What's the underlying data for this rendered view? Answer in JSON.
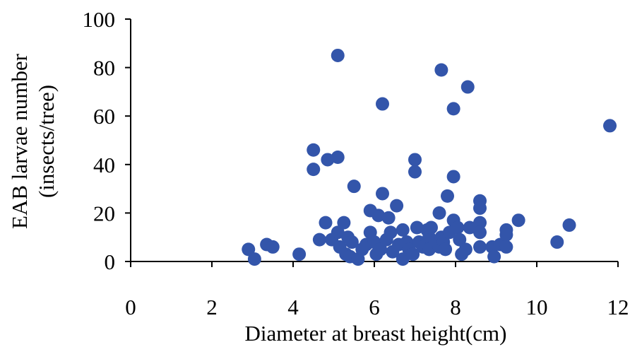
{
  "chart_data": {
    "type": "scatter",
    "title": "",
    "xlabel": "Diameter at breast height(cm)",
    "ylabel_line1": "EAB larvae number",
    "ylabel_line2": "(insects/tree)",
    "xlim": [
      0,
      12
    ],
    "ylim": [
      0,
      100
    ],
    "xticks": [
      0,
      2,
      4,
      6,
      8,
      10,
      12
    ],
    "yticks": [
      0,
      20,
      40,
      60,
      80,
      100
    ],
    "xtick_labels": [
      "0",
      "2",
      "4",
      "6",
      "8",
      "10",
      "12"
    ],
    "ytick_labels": [
      "0",
      "20",
      "40",
      "60",
      "80",
      "100"
    ],
    "grid": false,
    "legend": "none",
    "marker_color": "#3355aa",
    "points": [
      [
        2.9,
        5
      ],
      [
        3.05,
        1
      ],
      [
        3.35,
        7
      ],
      [
        3.5,
        6
      ],
      [
        4.15,
        3
      ],
      [
        4.5,
        46
      ],
      [
        4.5,
        38
      ],
      [
        4.85,
        42
      ],
      [
        5.1,
        43
      ],
      [
        5.1,
        85
      ],
      [
        4.65,
        9
      ],
      [
        4.8,
        16
      ],
      [
        4.95,
        9
      ],
      [
        5.1,
        12
      ],
      [
        5.15,
        6
      ],
      [
        5.25,
        16
      ],
      [
        5.3,
        3
      ],
      [
        5.35,
        10
      ],
      [
        5.45,
        8
      ],
      [
        5.5,
        31
      ],
      [
        5.4,
        2
      ],
      [
        5.6,
        1
      ],
      [
        5.7,
        5
      ],
      [
        5.8,
        7
      ],
      [
        5.9,
        12
      ],
      [
        5.9,
        21
      ],
      [
        6.0,
        8
      ],
      [
        6.05,
        3
      ],
      [
        6.1,
        19
      ],
      [
        6.15,
        5
      ],
      [
        6.2,
        28
      ],
      [
        6.2,
        65
      ],
      [
        6.3,
        9
      ],
      [
        6.35,
        18
      ],
      [
        6.4,
        12
      ],
      [
        6.45,
        4
      ],
      [
        6.55,
        23
      ],
      [
        6.6,
        7
      ],
      [
        6.7,
        1
      ],
      [
        6.7,
        13
      ],
      [
        6.8,
        8
      ],
      [
        6.85,
        5
      ],
      [
        6.95,
        3
      ],
      [
        7.0,
        42
      ],
      [
        7.0,
        37
      ],
      [
        7.05,
        14
      ],
      [
        7.1,
        8
      ],
      [
        7.2,
        6
      ],
      [
        7.3,
        13
      ],
      [
        7.35,
        10
      ],
      [
        7.35,
        5
      ],
      [
        7.4,
        14
      ],
      [
        7.5,
        8
      ],
      [
        7.6,
        6
      ],
      [
        7.6,
        20
      ],
      [
        7.65,
        79
      ],
      [
        7.65,
        10
      ],
      [
        7.7,
        8
      ],
      [
        7.75,
        5
      ],
      [
        7.8,
        27
      ],
      [
        7.85,
        12
      ],
      [
        7.95,
        63
      ],
      [
        7.95,
        35
      ],
      [
        7.95,
        17
      ],
      [
        8.05,
        14
      ],
      [
        8.1,
        9
      ],
      [
        8.15,
        3
      ],
      [
        8.25,
        5
      ],
      [
        8.3,
        72
      ],
      [
        8.35,
        14
      ],
      [
        8.6,
        25
      ],
      [
        8.6,
        22
      ],
      [
        8.6,
        16
      ],
      [
        8.6,
        12
      ],
      [
        8.6,
        6
      ],
      [
        8.9,
        6
      ],
      [
        8.95,
        2
      ],
      [
        9.1,
        7
      ],
      [
        9.25,
        13
      ],
      [
        9.25,
        11
      ],
      [
        9.25,
        6
      ],
      [
        9.55,
        17
      ],
      [
        10.5,
        8
      ],
      [
        10.8,
        15
      ],
      [
        11.8,
        56
      ]
    ]
  }
}
